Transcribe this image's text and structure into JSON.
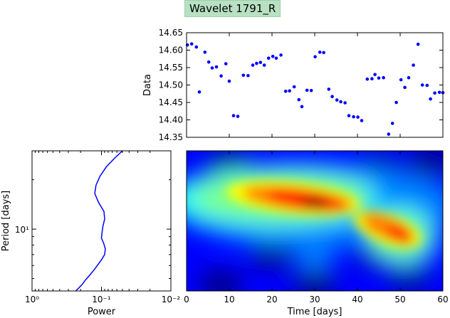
{
  "title": "Wavelet 1791_R",
  "chart_data": [
    {
      "type": "scatter",
      "title": "",
      "xlabel": "",
      "ylabel": "Data",
      "xlim": [
        0,
        60
      ],
      "ylim": [
        14.35,
        14.65
      ],
      "yticks": [
        "14.35",
        "14.40",
        "14.45",
        "14.50",
        "14.55",
        "14.60",
        "14.65"
      ],
      "color": "#0000ff",
      "x": [
        0.2,
        1.2,
        2.3,
        3.0,
        4.3,
        5.2,
        6.0,
        7.0,
        8.1,
        9.2,
        10.0,
        11.0,
        12.0,
        13.3,
        14.4,
        15.5,
        16.4,
        17.3,
        18.2,
        19.2,
        20.2,
        21.0,
        22.1,
        23.2,
        24.1,
        25.2,
        26.3,
        27.0,
        28.2,
        29.2,
        30.1,
        31.2,
        32.1,
        33.3,
        34.1,
        35.2,
        36.1,
        37.1,
        38.0,
        39.1,
        40.1,
        41.0,
        42.3,
        43.4,
        44.1,
        45.0,
        46.1,
        47.3,
        48.2,
        49.1,
        50.2,
        51.1,
        52.0,
        53.1,
        54.2,
        55.2,
        56.3,
        57.1,
        58.1,
        59.2,
        60.0
      ],
      "y": [
        14.615,
        14.618,
        14.609,
        14.48,
        14.594,
        14.566,
        14.549,
        14.552,
        14.526,
        14.561,
        14.511,
        14.412,
        14.41,
        14.528,
        14.527,
        14.557,
        14.562,
        14.565,
        14.557,
        14.577,
        14.582,
        14.577,
        14.586,
        14.482,
        14.483,
        14.495,
        14.458,
        14.438,
        14.485,
        14.484,
        14.581,
        14.594,
        14.593,
        14.488,
        14.467,
        14.457,
        14.452,
        14.449,
        14.412,
        14.409,
        14.408,
        14.398,
        14.517,
        14.518,
        14.53,
        14.52,
        14.521,
        14.359,
        14.39,
        14.45,
        14.515,
        14.493,
        14.521,
        14.557,
        14.617,
        14.5,
        14.499,
        14.46,
        14.477,
        14.479,
        14.478
      ]
    },
    {
      "type": "line",
      "title": "",
      "xlabel": "Power",
      "ylabel": "Period [days]",
      "xscale": "log",
      "xlim": [
        1,
        0.01
      ],
      "xtick_labels": [
        "10⁰",
        "10⁻¹",
        "10⁻²"
      ],
      "yscale": "log",
      "ylim": [
        4.2,
        30
      ],
      "ytick_labels": [
        "10¹"
      ],
      "color": "#0000ff",
      "power": [
        0.05,
        0.065,
        0.085,
        0.105,
        0.12,
        0.125,
        0.11,
        0.092,
        0.09,
        0.095,
        0.098,
        0.1,
        0.093,
        0.088,
        0.09,
        0.1,
        0.115,
        0.13,
        0.15,
        0.17,
        0.19,
        0.21,
        0.235
      ],
      "period": [
        30,
        27,
        24,
        21,
        18.5,
        16.5,
        14.5,
        12.8,
        11.5,
        10.5,
        9.6,
        8.8,
        8.2,
        7.6,
        7.0,
        6.5,
        6.0,
        5.6,
        5.2,
        4.9,
        4.6,
        4.4,
        4.2
      ]
    },
    {
      "type": "heatmap",
      "title": "",
      "xlabel": "Time [days]",
      "ylabel": "",
      "xlim": [
        0,
        60
      ],
      "xticks": [
        0,
        10,
        20,
        30,
        40,
        50,
        60
      ],
      "colormap": "jet",
      "colors": [
        "#00007f",
        "#0000ff",
        "#007fff",
        "#00ffff",
        "#7fff7f",
        "#ffff00",
        "#ff7f00",
        "#ff0000",
        "#7f0000"
      ],
      "ridge": [
        {
          "t": 8,
          "period": 16
        },
        {
          "t": 28,
          "period": 15
        },
        {
          "t": 45,
          "period": 11
        },
        {
          "t": 52,
          "period": 8.5
        }
      ]
    }
  ]
}
